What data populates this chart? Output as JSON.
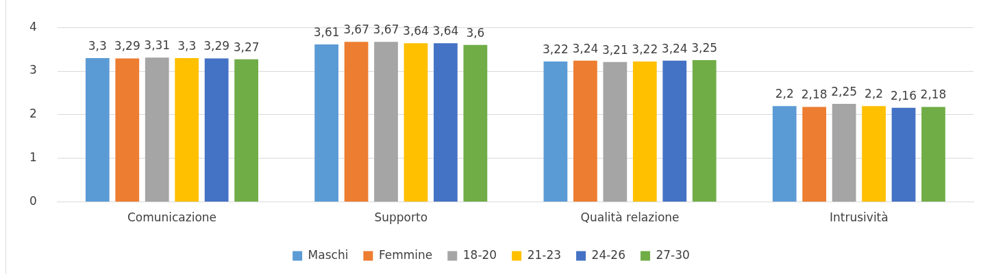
{
  "chart_data": {
    "type": "bar",
    "categories": [
      "Comunicazione",
      "Supporto",
      "Qualità relazione",
      "Intrusività"
    ],
    "series": [
      {
        "name": "Maschi",
        "color": "#5b9bd5",
        "values": [
          3.3,
          3.61,
          3.22,
          2.2
        ],
        "value_labels": [
          "3,3",
          "3,61",
          "3,22",
          "2,2"
        ]
      },
      {
        "name": "Femmine",
        "color": "#ed7d31",
        "values": [
          3.29,
          3.67,
          3.24,
          2.18
        ],
        "value_labels": [
          "3,29",
          "3,67",
          "3,24",
          "2,18"
        ]
      },
      {
        "name": "18-20",
        "color": "#a5a5a5",
        "values": [
          3.31,
          3.67,
          3.21,
          2.25
        ],
        "value_labels": [
          "3,31",
          "3,67",
          "3,21",
          "2,25"
        ]
      },
      {
        "name": "21-23",
        "color": "#ffc000",
        "values": [
          3.3,
          3.64,
          3.22,
          2.2
        ],
        "value_labels": [
          "3,3",
          "3,64",
          "3,22",
          "2,2"
        ]
      },
      {
        "name": "24-26",
        "color": "#4472c4",
        "values": [
          3.29,
          3.64,
          3.24,
          2.16
        ],
        "value_labels": [
          "3,29",
          "3,64",
          "3,24",
          "2,16"
        ]
      },
      {
        "name": "27-30",
        "color": "#70ad47",
        "values": [
          3.27,
          3.6,
          3.25,
          2.18
        ],
        "value_labels": [
          "3,27",
          "3,6",
          "3,25",
          "2,18"
        ]
      }
    ],
    "ylim": [
      0,
      4
    ],
    "yticks": [
      0,
      1,
      2,
      3,
      4
    ],
    "grid": "y",
    "legend": "bottom"
  }
}
